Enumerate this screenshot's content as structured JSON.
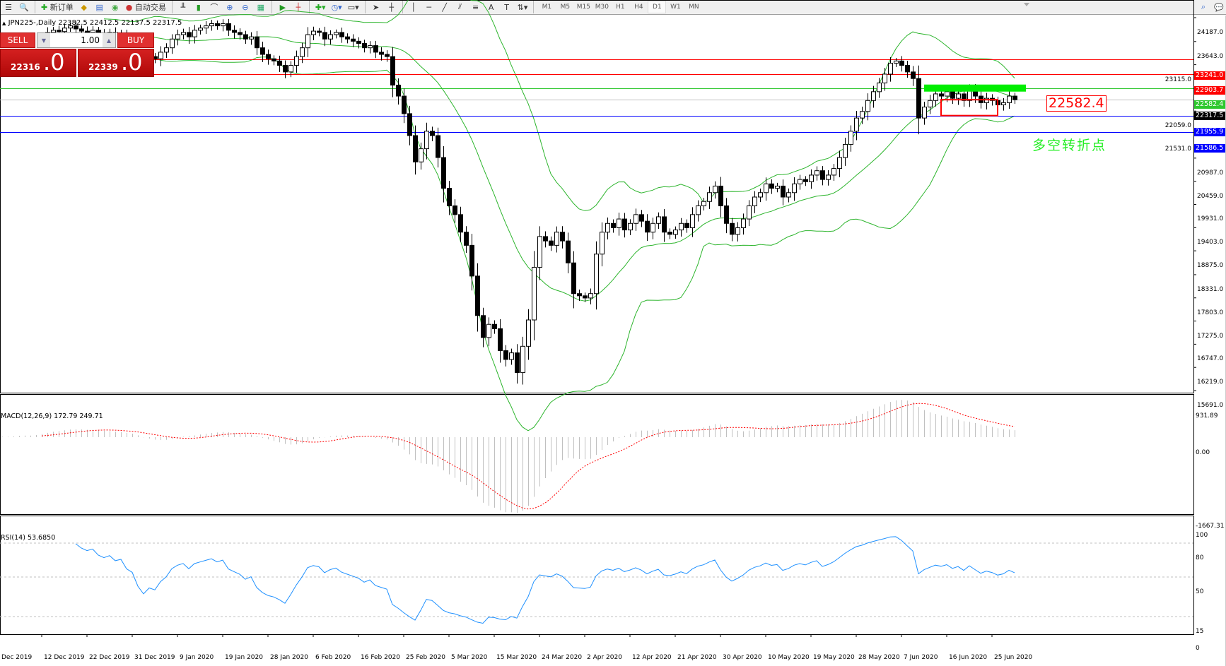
{
  "toolbar": {
    "new_order": "新订单",
    "auto_trading": "自动交易",
    "timeframes": [
      "M1",
      "M5",
      "M15",
      "M30",
      "H1",
      "H4",
      "D1",
      "W1",
      "MN"
    ],
    "active_timeframe": "D1",
    "draw_text_tool": "A"
  },
  "header": {
    "symbol_line": "JPN225-,Daily  22382.5 22412.5 22137.5 22317.5"
  },
  "trade_panel": {
    "sell_label": "SELL",
    "buy_label": "BUY",
    "lot": "1.00",
    "sell_price_small": "22316",
    "sell_price_big": ".0",
    "buy_price_small": "22339",
    "buy_price_big": ".0"
  },
  "annotations": {
    "level_label": "22582.4",
    "note": "多空转折点"
  },
  "colors": {
    "bull": "#ffffff",
    "bear": "#000000",
    "bands": "#2db52d",
    "macd_hist": "#c0c0c0",
    "macd_signal": "#ff0000",
    "rsi": "#1e90ff",
    "accent_red": "#ff0000",
    "accent_green": "#00ee00",
    "accent_blue": "#0000ff"
  },
  "chart_data": [
    {
      "type": "candlestick",
      "title": "JPN225-,Daily",
      "ylim": [
        15643,
        24589
      ],
      "y_ticks": [
        "24187.0",
        "23643.0",
        "23115.0",
        "22059.0",
        "21531.0",
        "20987.0",
        "20459.0",
        "19931.0",
        "19403.0",
        "18875.0",
        "18331.0",
        "17803.0",
        "17275.0",
        "16747.0",
        "16219.0",
        "15691.0"
      ],
      "x_ticks": [
        {
          "bar": 0,
          "label": "Dec 2019"
        },
        {
          "bar": 8,
          "label": "12 Dec 2019"
        },
        {
          "bar": 16,
          "label": "22 Dec 2019"
        },
        {
          "bar": 24,
          "label": "31 Dec 2019"
        },
        {
          "bar": 32,
          "label": "9 Jan 2020"
        },
        {
          "bar": 40,
          "label": "19 Jan 2020"
        },
        {
          "bar": 48,
          "label": "28 Jan 2020"
        },
        {
          "bar": 56,
          "label": "6 Feb 2020"
        },
        {
          "bar": 64,
          "label": "16 Feb 2020"
        },
        {
          "bar": 72,
          "label": "25 Feb 2020"
        },
        {
          "bar": 80,
          "label": "5 Mar 2020"
        },
        {
          "bar": 88,
          "label": "15 Mar 2020"
        },
        {
          "bar": 96,
          "label": "24 Mar 2020"
        },
        {
          "bar": 104,
          "label": "2 Apr 2020"
        },
        {
          "bar": 112,
          "label": "12 Apr 2020"
        },
        {
          "bar": 120,
          "label": "21 Apr 2020"
        },
        {
          "bar": 128,
          "label": "30 Apr 2020"
        },
        {
          "bar": 136,
          "label": "10 May 2020"
        },
        {
          "bar": 144,
          "label": "19 May 2020"
        },
        {
          "bar": 152,
          "label": "28 May 2020"
        },
        {
          "bar": 160,
          "label": "7 Jun 2020"
        },
        {
          "bar": 168,
          "label": "16 Jun 2020"
        },
        {
          "bar": 176,
          "label": "25 Jun 2020"
        }
      ],
      "close": [
        23300,
        23380,
        23350,
        23420,
        23500,
        23450,
        23410,
        23550,
        23700,
        23850,
        23900,
        23870,
        23950,
        24000,
        23930,
        23880,
        23850,
        23900,
        23830,
        23800,
        23850,
        23790,
        23820,
        23700,
        23650,
        23400,
        23200,
        23300,
        23250,
        23400,
        23500,
        23700,
        23800,
        23850,
        23750,
        23900,
        23950,
        24000,
        24050,
        24000,
        24050,
        23900,
        23850,
        23800,
        23700,
        23750,
        23500,
        23350,
        23250,
        23200,
        23100,
        22950,
        23100,
        23300,
        23500,
        23800,
        23880,
        23850,
        23700,
        23800,
        23850,
        23750,
        23700,
        23650,
        23600,
        23500,
        23550,
        23400,
        23350,
        23300,
        22650,
        22400,
        22000,
        21500,
        20900,
        21200,
        21600,
        21500,
        21000,
        20300,
        19900,
        19700,
        19300,
        19000,
        18300,
        17400,
        16900,
        17200,
        17100,
        16600,
        16400,
        16550,
        16100,
        16700,
        17300,
        18500,
        19200,
        19100,
        19000,
        19300,
        19100,
        18600,
        17900,
        17850,
        17800,
        17900,
        18800,
        19300,
        19500,
        19400,
        19600,
        19350,
        19500,
        19700,
        19550,
        19300,
        19500,
        19650,
        19300,
        19250,
        19350,
        19500,
        19400,
        19700,
        19900,
        20000,
        20200,
        20350,
        19900,
        19500,
        19250,
        19400,
        19600,
        19900,
        20100,
        20200,
        20400,
        20300,
        20350,
        20100,
        20200,
        20400,
        20500,
        20450,
        20600,
        20700,
        20500,
        20600,
        20750,
        21000,
        21300,
        21600,
        21900,
        22050,
        22300,
        22500,
        22700,
        22900,
        23150,
        23200,
        23100,
        22950,
        22800,
        21900,
        22150,
        22300,
        22450,
        22400,
        22500,
        22350,
        22450,
        22300,
        22550,
        22400,
        22250,
        22350,
        22300,
        22200,
        22250,
        22400,
        22317.5
      ],
      "overlay": "Bollinger Bands (20, 2)",
      "horizontal_lines": [
        {
          "price": "23241.0",
          "color": "#ff0000"
        },
        {
          "price": "22903.7",
          "color": "#ff0000"
        },
        {
          "price": "22582.4",
          "color": "#2ec82e"
        },
        {
          "price": "22317.5",
          "color": "#000000",
          "line": "#c0c0c0"
        },
        {
          "price": "21955.9",
          "color": "#0000ff"
        },
        {
          "price": "21586.5",
          "color": "#0000ff"
        }
      ],
      "zones": [
        {
          "type": "filled-bar",
          "price": 22582.4,
          "from_bar": 164,
          "to_bar": 182,
          "color": "#00ee00"
        },
        {
          "type": "box",
          "top": 22317.5,
          "bottom": 21955.9,
          "from_bar": 167,
          "to_bar": 177,
          "color": "#ff0000"
        }
      ]
    },
    {
      "type": "histogram+line",
      "title": "MACD(12,26,9) 172.79 249.71",
      "ylim": [
        -1667.31,
        931.89
      ],
      "y_ticks": [
        "931.89",
        "0.00",
        "-1667.31"
      ]
    },
    {
      "type": "line",
      "title": "RSI(14) 53.6850",
      "ylim": [
        0,
        100
      ],
      "y_ticks": [
        "100",
        "80",
        "50",
        "15",
        "0"
      ],
      "levels": [
        80,
        50,
        15
      ]
    }
  ]
}
